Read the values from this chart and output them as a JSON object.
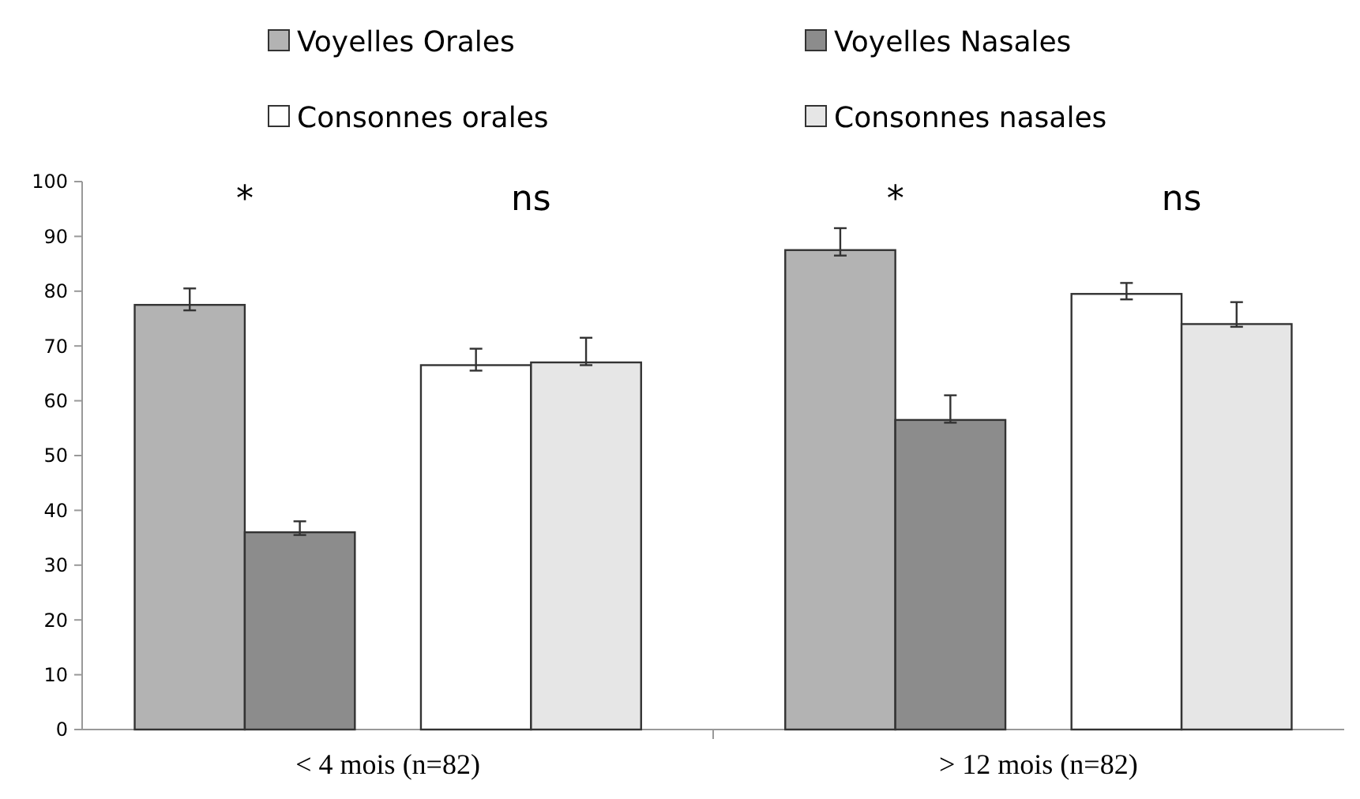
{
  "chart_data": {
    "type": "bar",
    "categories": [
      "< 4 mois (n=82)",
      "> 12 mois (n=82)"
    ],
    "series": [
      {
        "name": "Voyelles Orales",
        "color": "#b3b3b3",
        "values": [
          77.5,
          87.5
        ],
        "errors": [
          [
            76.5,
            80.5
          ],
          [
            86.5,
            91.5
          ]
        ]
      },
      {
        "name": "Voyelles Nasales",
        "color": "#8c8c8c",
        "values": [
          36,
          56.5
        ],
        "errors": [
          [
            35.5,
            38
          ],
          [
            56,
            61
          ]
        ]
      },
      {
        "name": "Consonnes orales",
        "color": "#ffffff",
        "values": [
          66.5,
          79.5
        ],
        "errors": [
          [
            65.5,
            69.5
          ],
          [
            78.5,
            81.5
          ]
        ]
      },
      {
        "name": "Consonnes nasales",
        "color": "#e6e6e6",
        "values": [
          67,
          74
        ],
        "errors": [
          [
            66.5,
            71.5
          ],
          [
            73.5,
            78
          ]
        ]
      }
    ],
    "ylim": [
      0,
      100
    ],
    "yticks": [
      0,
      10,
      20,
      30,
      40,
      50,
      60,
      70,
      80,
      90,
      100
    ],
    "grid": false,
    "legend": "top",
    "annotations": [
      "*",
      "ns",
      "*",
      "ns"
    ]
  }
}
